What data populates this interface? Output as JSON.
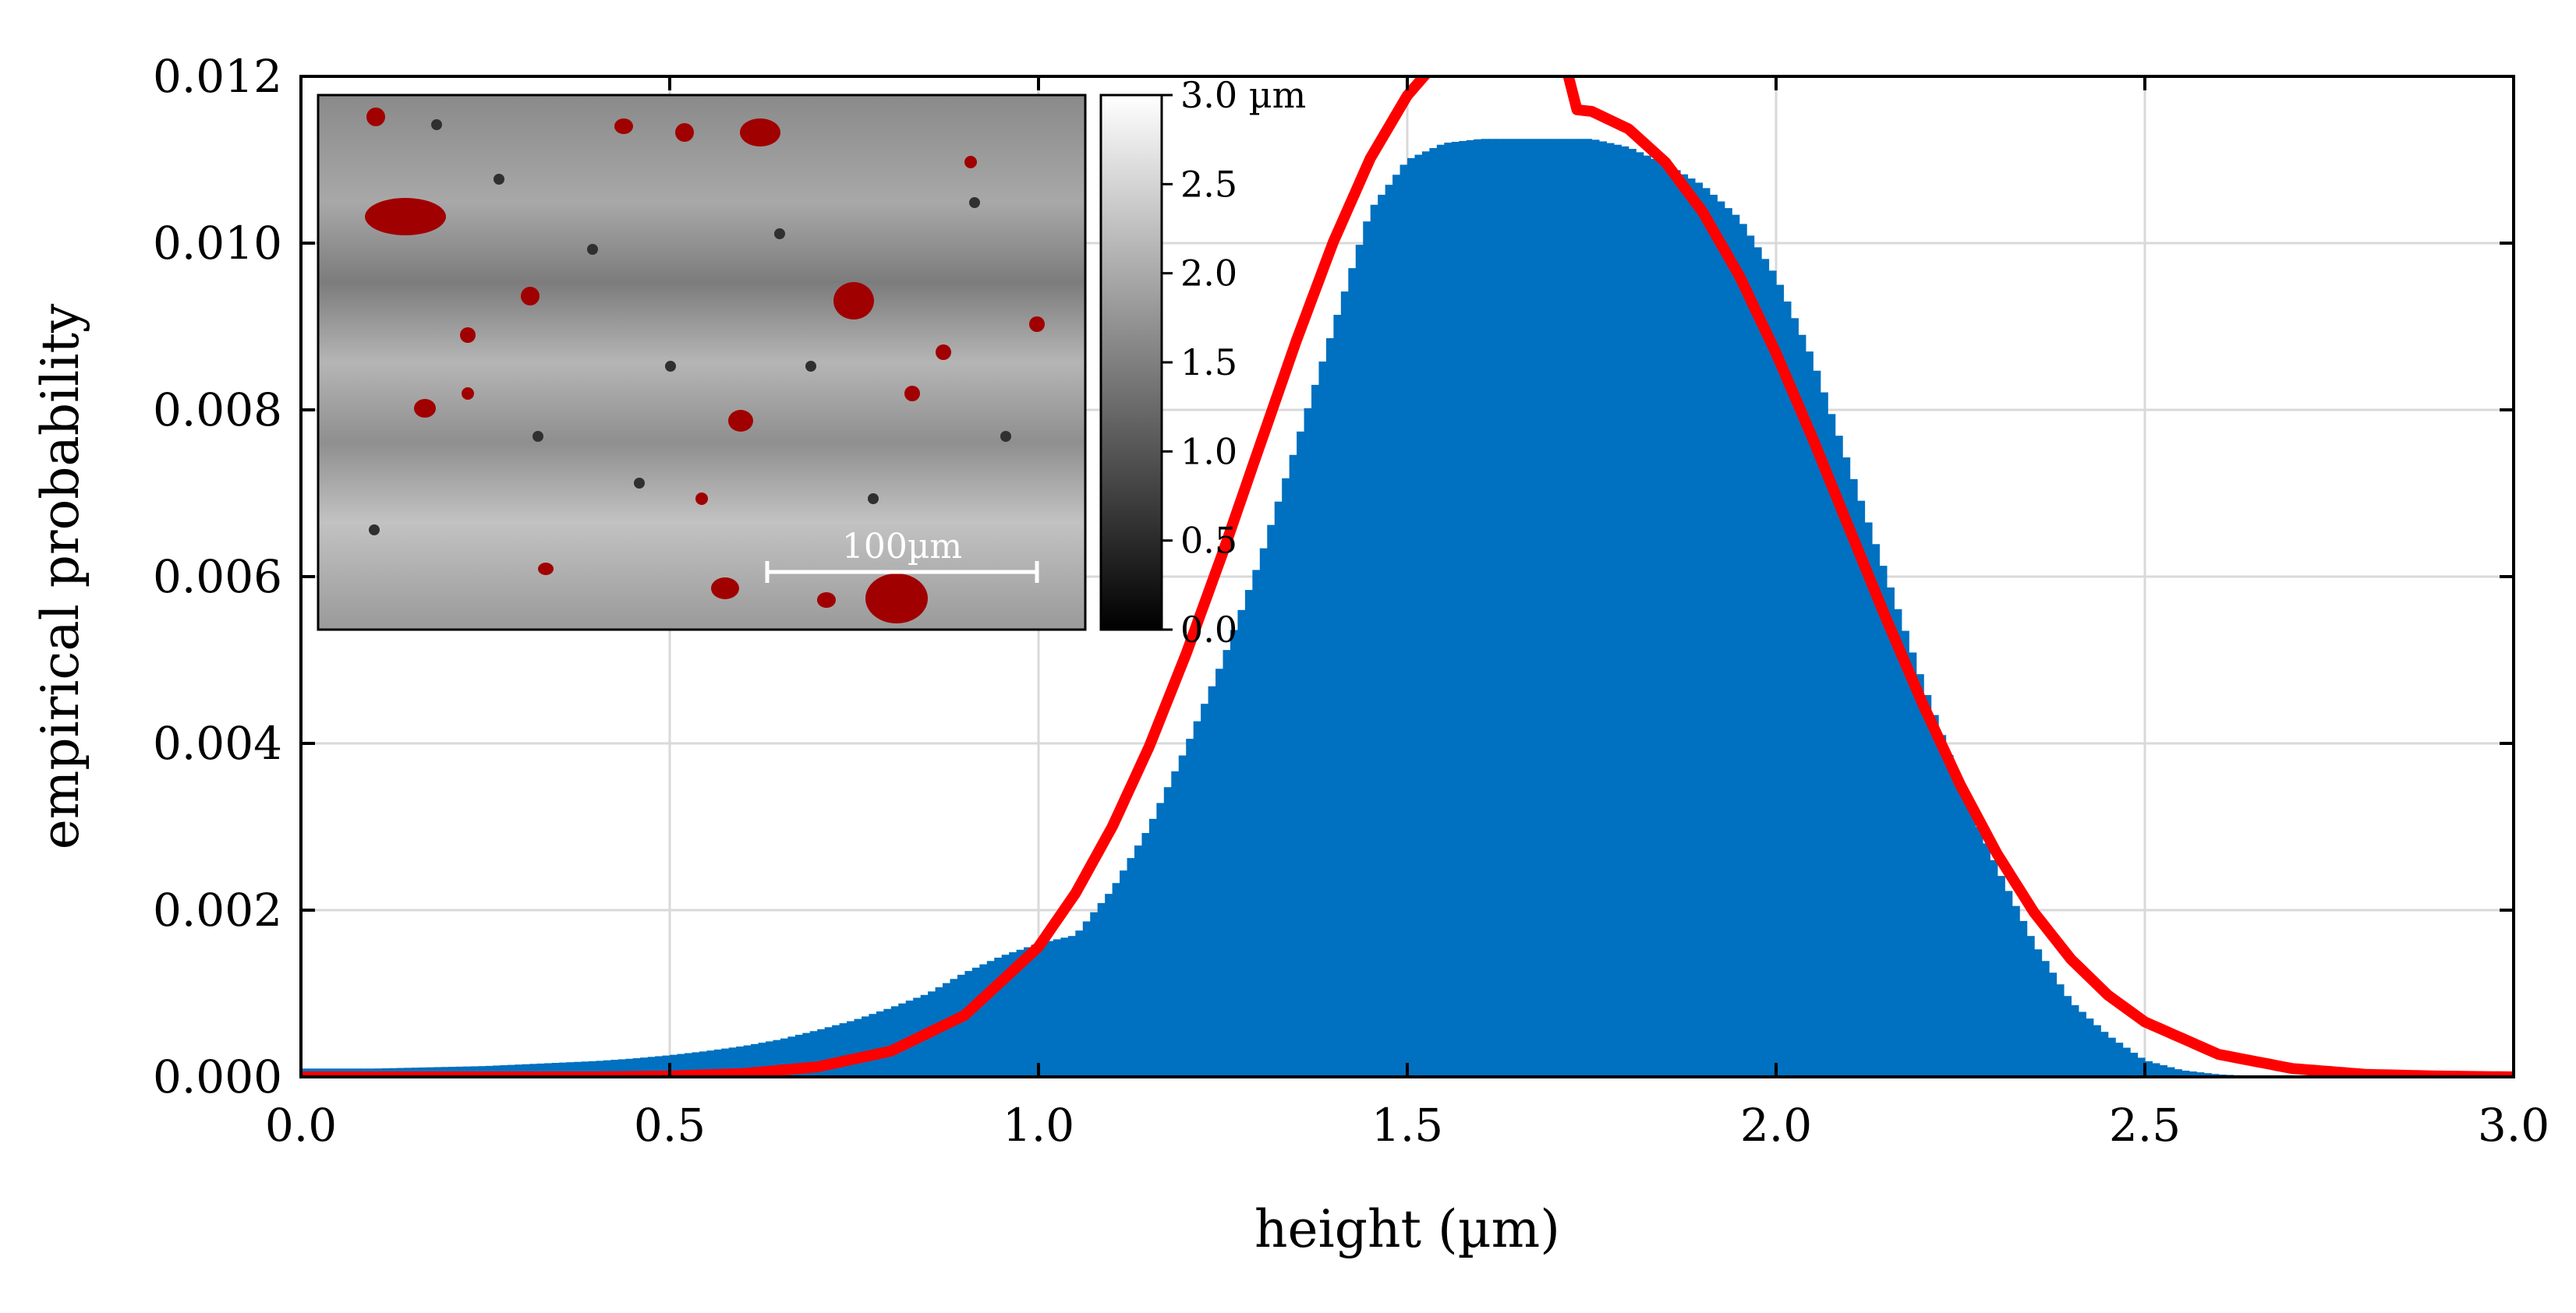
{
  "chart_data": {
    "type": "bar",
    "xlabel": "height (µm)",
    "ylabel": "empirical probability",
    "xlim": [
      0.0,
      3.0
    ],
    "ylim": [
      0.0,
      0.012
    ],
    "x_ticks": [
      "0.0",
      "0.5",
      "1.0",
      "1.5",
      "2.0",
      "2.5",
      "3.0"
    ],
    "y_ticks": [
      "0.000",
      "0.002",
      "0.004",
      "0.006",
      "0.008",
      "0.010",
      "0.012"
    ],
    "grid": true,
    "series": [
      {
        "kind": "histogram",
        "color": "#0070c0",
        "bin_width": 0.01,
        "x": [
          0.0,
          0.05,
          0.1,
          0.15,
          0.2,
          0.25,
          0.3,
          0.35,
          0.4,
          0.45,
          0.5,
          0.55,
          0.6,
          0.65,
          0.7,
          0.75,
          0.8,
          0.85,
          0.9,
          0.95,
          1.0,
          1.05,
          1.1,
          1.15,
          1.2,
          1.25,
          1.3,
          1.35,
          1.4,
          1.45,
          1.5,
          1.55,
          1.6,
          1.65,
          1.7,
          1.75,
          1.8,
          1.85,
          1.9,
          1.95,
          2.0,
          2.05,
          2.1,
          2.15,
          2.2,
          2.25,
          2.3,
          2.35,
          2.4,
          2.45,
          2.5,
          2.55,
          2.6,
          2.65,
          2.7,
          2.75,
          2.8,
          2.85,
          2.9,
          2.95,
          3.0
        ],
        "y": [
          0.0001,
          0.0001,
          0.0001,
          0.00011,
          0.00012,
          0.00013,
          0.00015,
          0.00017,
          0.00019,
          0.00022,
          0.00026,
          0.00031,
          0.00037,
          0.00045,
          0.00056,
          0.00068,
          0.00083,
          0.001,
          0.00125,
          0.00145,
          0.0016,
          0.0017,
          0.00225,
          0.003,
          0.00395,
          0.005,
          0.0062,
          0.0076,
          0.009,
          0.0104,
          0.011,
          0.0112,
          0.01125,
          0.01125,
          0.01125,
          0.01125,
          0.01115,
          0.01095,
          0.0107,
          0.0103,
          0.0096,
          0.0086,
          0.0073,
          0.006,
          0.0047,
          0.0035,
          0.0025,
          0.0016,
          0.0009,
          0.0005,
          0.0002,
          8e-05,
          3e-05,
          1e-05,
          0.0,
          0.0,
          0.0,
          0.0,
          0.0,
          0.0,
          0.0
        ]
      },
      {
        "kind": "line",
        "color": "#ff0000",
        "fit": "gaussian",
        "x": [
          0.0,
          0.1,
          0.2,
          0.3,
          0.4,
          0.5,
          0.6,
          0.7,
          0.8,
          0.9,
          1.0,
          1.05,
          1.1,
          1.15,
          1.2,
          1.25,
          1.3,
          1.35,
          1.4,
          1.45,
          1.5,
          1.55,
          1.6,
          1.65,
          1.7,
          1.73,
          1.75,
          1.8,
          1.85,
          1.9,
          1.95,
          2.0,
          2.05,
          2.1,
          2.15,
          2.2,
          2.25,
          2.3,
          2.35,
          2.4,
          2.45,
          2.5,
          2.6,
          2.7,
          2.8,
          2.9,
          3.0
        ],
        "y": [
          0.0,
          0.0,
          0.0,
          0.0,
          0.0,
          1e-05,
          4e-05,
          0.00012,
          0.00031,
          0.00074,
          0.00156,
          0.0022,
          0.003,
          0.00396,
          0.00507,
          0.00629,
          0.00757,
          0.00884,
          0.01002,
          0.01102,
          0.01177,
          0.01228,
          0.01264,
          0.01278,
          0.01265,
          0.0116,
          0.01158,
          0.01137,
          0.01097,
          0.01038,
          0.00961,
          0.00868,
          0.00765,
          0.00656,
          0.00548,
          0.00445,
          0.0035,
          0.00267,
          0.00197,
          0.00141,
          0.00098,
          0.00066,
          0.00027,
          0.0001,
          3e-05,
          1e-05,
          0.0
        ]
      }
    ],
    "inset": {
      "type": "heatmap",
      "content": "surface height map with red-highlighted particles",
      "scale_bar_label": "100µm",
      "colorbar": {
        "ticks": [
          "0.0",
          "0.5",
          "1.0",
          "1.5",
          "2.0",
          "2.5",
          "3.0 µm"
        ],
        "range": [
          0.0,
          3.0
        ],
        "colormap": "grayscale",
        "highlight_color": "#a00000"
      }
    }
  }
}
